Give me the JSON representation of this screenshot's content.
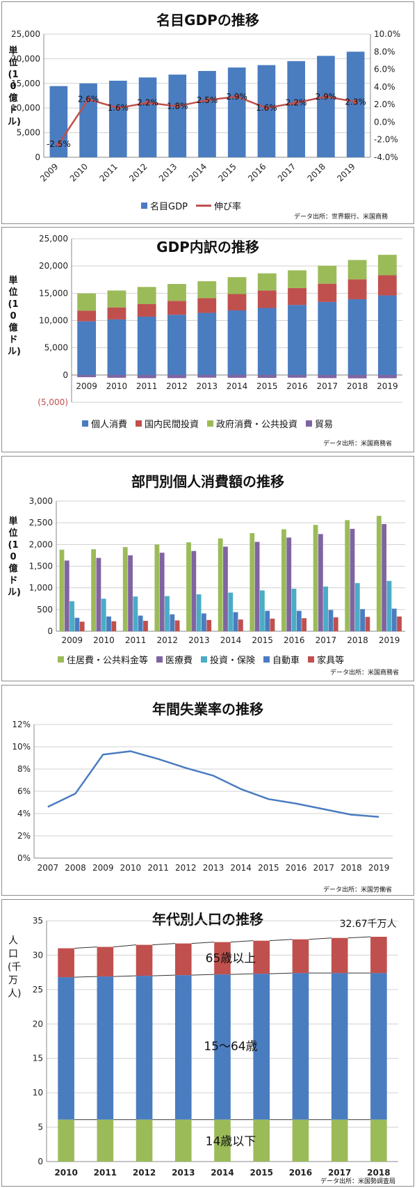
{
  "chart_data": [
    {
      "type": "bar",
      "title": "名目GDPの推移",
      "ylabel": "単位(10億ドル)",
      "categories": [
        "2009",
        "2010",
        "2011",
        "2012",
        "2013",
        "2014",
        "2015",
        "2016",
        "2017",
        "2018",
        "2019"
      ],
      "ylim": [
        0,
        25000
      ],
      "yticks": [
        "0",
        "5,000",
        "10,000",
        "15,000",
        "20,000",
        "25,000"
      ],
      "y2lim": [
        -4,
        10
      ],
      "y2ticks": [
        "-4.0%",
        "-2.0%",
        "0.0%",
        "2.0%",
        "4.0%",
        "6.0%",
        "8.0%",
        "10.0%"
      ],
      "series": [
        {
          "name": "名目GDP",
          "kind": "bar",
          "color": "#4a7cc0",
          "values": [
            14450,
            14990,
            15540,
            16200,
            16780,
            17520,
            18220,
            18710,
            19520,
            20580,
            21430
          ]
        },
        {
          "name": "伸び率",
          "kind": "line",
          "axis": "right",
          "color": "#c0504d",
          "values": [
            -2.5,
            2.6,
            1.6,
            2.2,
            1.8,
            2.5,
            2.9,
            1.6,
            2.2,
            2.9,
            2.3
          ],
          "labels": [
            "-2.5%",
            "2.6%",
            "1.6%",
            "2.2%",
            "1.8%",
            "2.5%",
            "2.9%",
            "1.6%",
            "2.2%",
            "2.9%",
            "2.3%"
          ]
        }
      ],
      "source": "データ出所：世界銀行、米国商務",
      "legend_position": "bottom",
      "grid": true
    },
    {
      "type": "bar",
      "stacked": true,
      "title": "GDP内訳の推移",
      "ylabel": "単位(10億ドル)",
      "categories": [
        "2009",
        "2010",
        "2011",
        "2012",
        "2013",
        "2014",
        "2015",
        "2016",
        "2017",
        "2018",
        "2019"
      ],
      "ylim": [
        -5000,
        25000
      ],
      "yticks": [
        "(5,000)",
        "0",
        "5,000",
        "10,000",
        "15,000",
        "20,000",
        "25,000"
      ],
      "series": [
        {
          "name": "個人消費",
          "color": "#4a7cc0",
          "values": [
            9850,
            10200,
            10700,
            11050,
            11400,
            11850,
            12300,
            12850,
            13400,
            13900,
            14600
          ]
        },
        {
          "name": "国内民間投資",
          "color": "#c0504d",
          "values": [
            1950,
            2200,
            2300,
            2550,
            2700,
            3000,
            3200,
            3100,
            3350,
            3650,
            3700
          ]
        },
        {
          "name": "政府消費・公共投資",
          "color": "#9bbb59",
          "values": [
            3150,
            3100,
            3150,
            3100,
            3100,
            3100,
            3150,
            3250,
            3300,
            3550,
            3750
          ]
        },
        {
          "name": "貿易",
          "color": "#8064a2",
          "values": [
            -400,
            -510,
            -580,
            -570,
            -490,
            -510,
            -530,
            -500,
            -570,
            -610,
            -590
          ]
        }
      ],
      "source": "データ出所：米国商務省",
      "legend_position": "bottom",
      "grid": true
    },
    {
      "type": "bar",
      "title": "部門別個人消費額の推移",
      "ylabel": "単位(10億ドル)",
      "categories": [
        "2009",
        "2010",
        "2011",
        "2012",
        "2013",
        "2014",
        "2015",
        "2016",
        "2017",
        "2018",
        "2019"
      ],
      "ylim": [
        0,
        3000
      ],
      "yticks": [
        "0",
        "500",
        "1,000",
        "1,500",
        "2,000",
        "2,500",
        "3,000"
      ],
      "series": [
        {
          "name": "住居費・公共料金等",
          "color": "#9bbb59",
          "values": [
            1880,
            1890,
            1940,
            2000,
            2050,
            2140,
            2260,
            2350,
            2450,
            2560,
            2660
          ]
        },
        {
          "name": "医療費",
          "color": "#8064a2",
          "values": [
            1630,
            1690,
            1750,
            1810,
            1850,
            1950,
            2060,
            2160,
            2240,
            2360,
            2470
          ]
        },
        {
          "name": "投資・保険",
          "color": "#4bacc6",
          "values": [
            690,
            750,
            800,
            810,
            850,
            890,
            940,
            980,
            1030,
            1110,
            1160
          ]
        },
        {
          "name": "自動車",
          "color": "#4a7cc0",
          "values": [
            310,
            340,
            360,
            390,
            410,
            440,
            470,
            470,
            490,
            510,
            520
          ]
        },
        {
          "name": "家具等",
          "color": "#c0504d",
          "values": [
            220,
            230,
            240,
            250,
            260,
            270,
            290,
            300,
            320,
            330,
            340
          ]
        }
      ],
      "source": "データ出所：米国商務省",
      "legend_position": "bottom",
      "grid": true
    },
    {
      "type": "line",
      "title": "年間失業率の推移",
      "categories": [
        "2007",
        "2008",
        "2009",
        "2010",
        "2011",
        "2012",
        "2013",
        "2014",
        "2015",
        "2016",
        "2017",
        "2018",
        "2019"
      ],
      "ylim": [
        0,
        12
      ],
      "yticks": [
        "0%",
        "2%",
        "4%",
        "6%",
        "8%",
        "10%",
        "12%"
      ],
      "series": [
        {
          "color": "#4a7cc0",
          "values": [
            4.6,
            5.8,
            9.3,
            9.6,
            8.9,
            8.1,
            7.4,
            6.2,
            5.3,
            4.9,
            4.4,
            3.9,
            3.7
          ]
        }
      ],
      "source": "データ出所：米国労働省",
      "grid": true
    },
    {
      "type": "bar",
      "stacked": true,
      "title": "年代別人口の推移",
      "ylabel": "人口(千万人)",
      "categories": [
        "2010",
        "2011",
        "2012",
        "2013",
        "2014",
        "2015",
        "2016",
        "2017",
        "2018"
      ],
      "ylim": [
        0,
        35
      ],
      "yticks": [
        "0",
        "5",
        "10",
        "15",
        "20",
        "25",
        "30",
        "35"
      ],
      "series": [
        {
          "color": "#9bbb59",
          "values": [
            6.1,
            6.1,
            6.1,
            6.1,
            6.1,
            6.1,
            6.1,
            6.1,
            6.1
          ]
        },
        {
          "color": "#4a7cc0",
          "values": [
            20.7,
            20.8,
            20.9,
            21.0,
            21.1,
            21.2,
            21.3,
            21.3,
            21.3
          ]
        },
        {
          "color": "#c0504d",
          "values": [
            4.2,
            4.3,
            4.5,
            4.6,
            4.7,
            4.8,
            4.9,
            5.1,
            5.27
          ]
        }
      ],
      "annotations": [
        "32.67千万人",
        "65歳以上",
        "15～64歳",
        "14歳以下"
      ],
      "source": "データ出所：米国勢調査局",
      "grid": true
    }
  ]
}
